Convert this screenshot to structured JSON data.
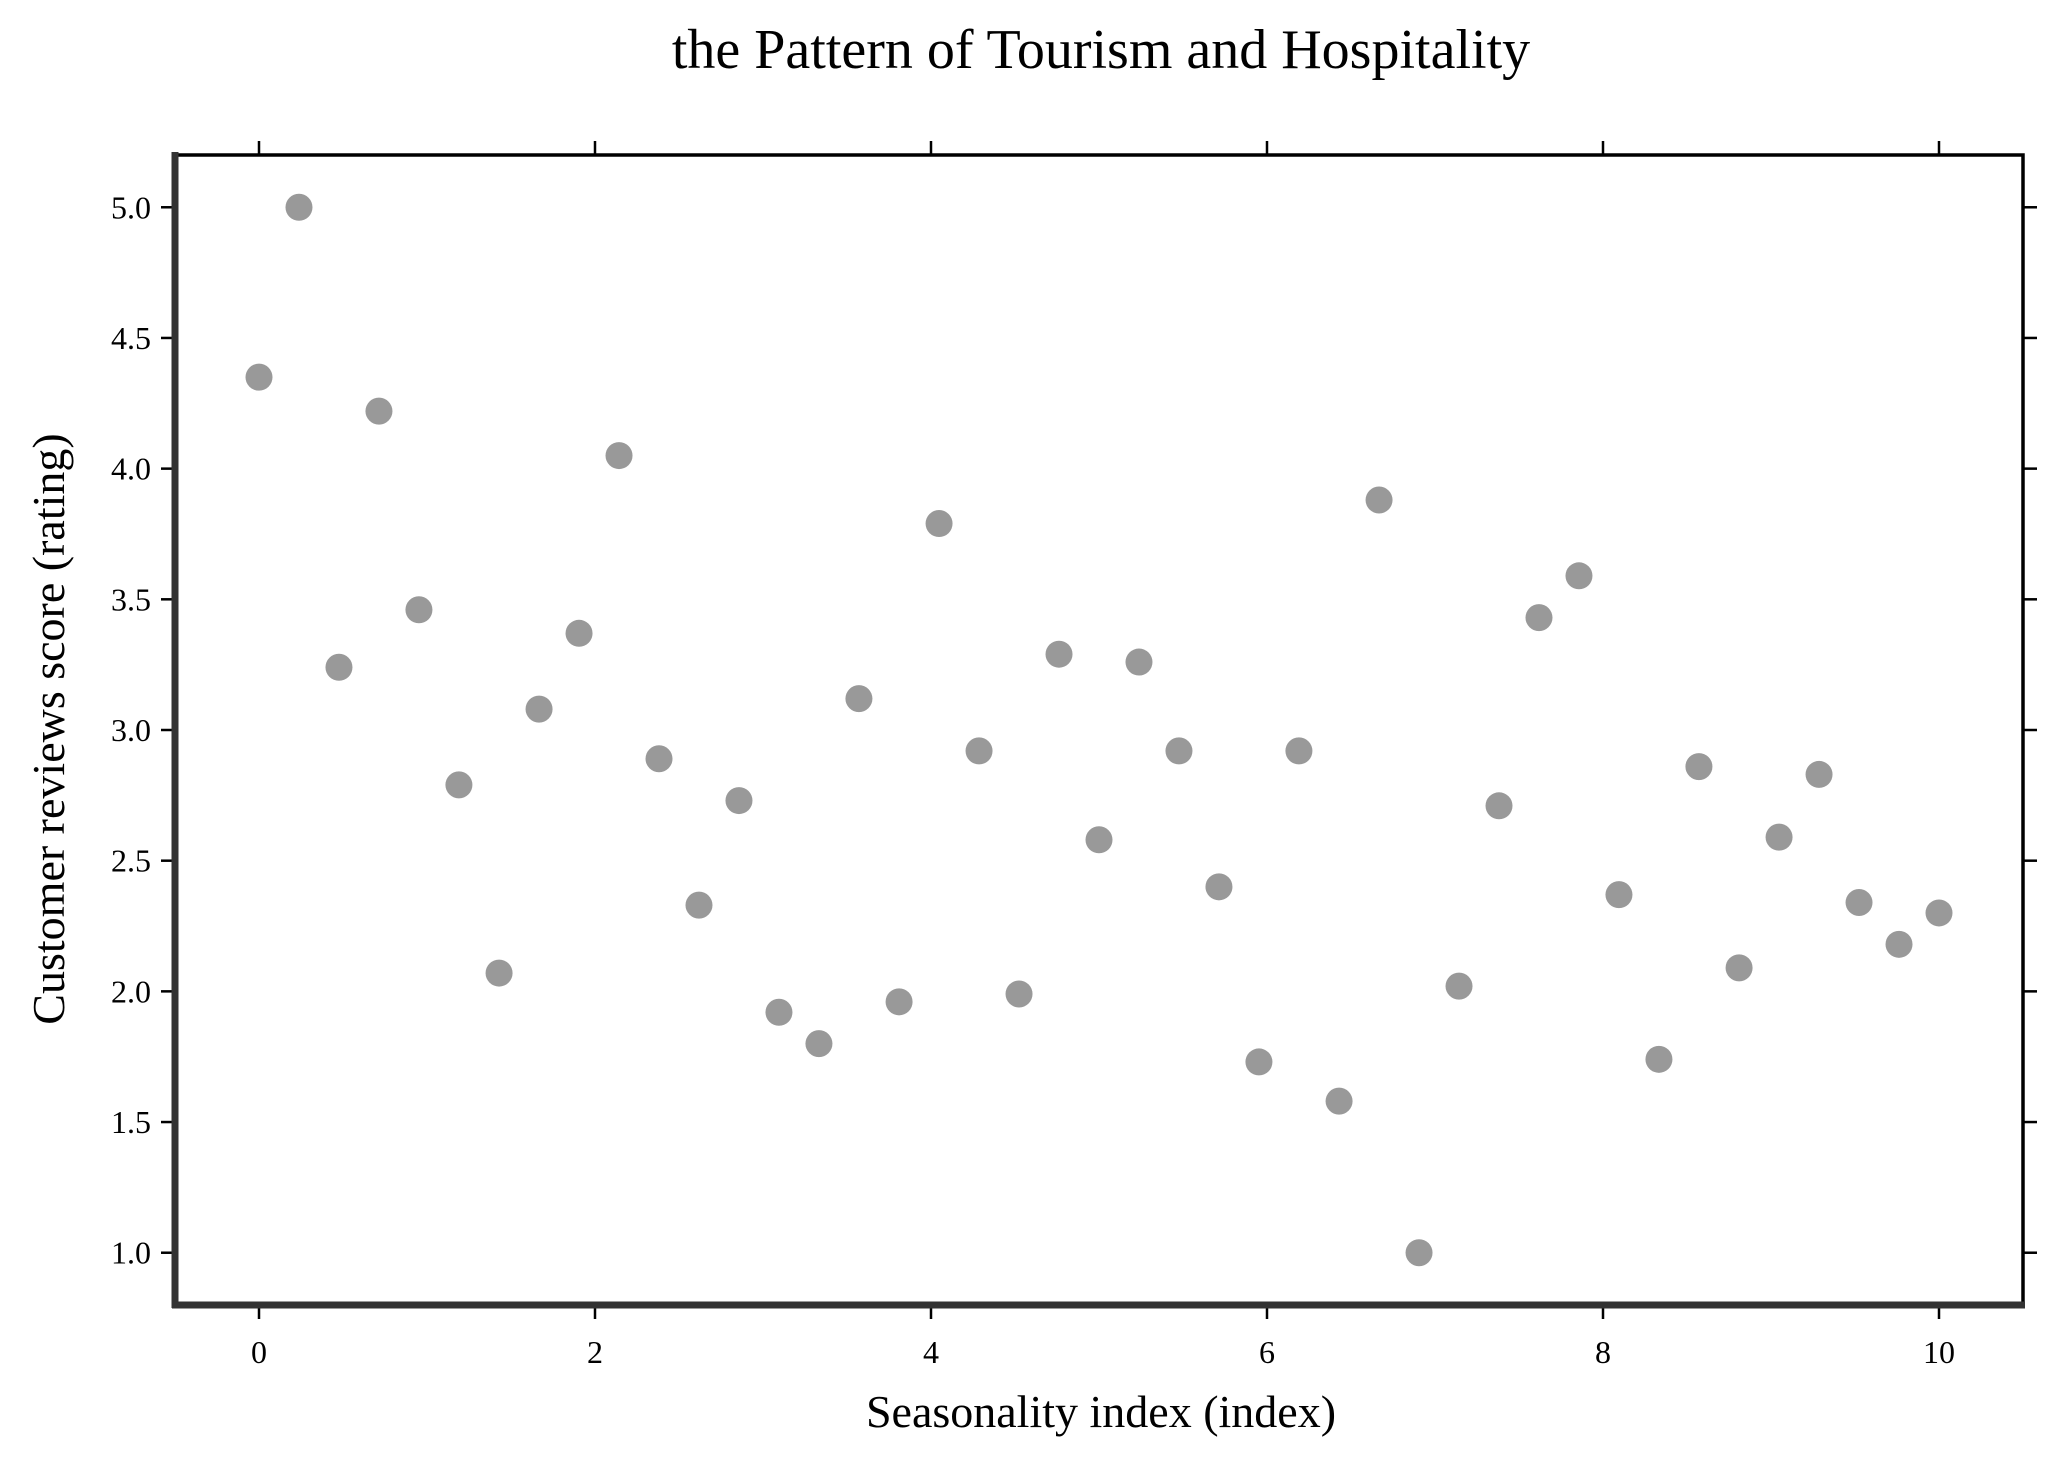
{
  "chart_data": {
    "type": "scatter",
    "title": "the Pattern of Tourism and Hospitality",
    "xlabel": "Seasonality index (index)",
    "ylabel": "Customer reviews score (rating)",
    "xlim": [
      -0.5,
      10.5
    ],
    "ylim": [
      0.8,
      5.2
    ],
    "xticks": [
      0,
      2,
      4,
      6,
      8,
      10
    ],
    "xtick_labels": [
      "0",
      "2",
      "4",
      "6",
      "8",
      "10"
    ],
    "yticks": [
      1.0,
      1.5,
      2.0,
      2.5,
      3.0,
      3.5,
      4.0,
      4.5,
      5.0
    ],
    "ytick_labels": [
      "1.0",
      "1.5",
      "2.0",
      "2.5",
      "3.0",
      "3.5",
      "4.0",
      "4.5",
      "5.0"
    ],
    "grid": false,
    "marker_color": "#999999",
    "x": [
      0.0,
      0.238,
      0.476,
      0.714,
      0.952,
      1.19,
      1.429,
      1.667,
      1.905,
      2.143,
      2.381,
      2.619,
      2.857,
      3.095,
      3.333,
      3.571,
      3.81,
      4.048,
      4.286,
      4.524,
      4.762,
      5.0,
      5.238,
      5.476,
      5.714,
      5.952,
      6.19,
      6.429,
      6.667,
      6.905,
      7.143,
      7.381,
      7.619,
      7.857,
      8.095,
      8.333,
      8.571,
      8.81,
      9.048,
      9.286,
      9.524,
      9.762,
      10.0
    ],
    "y": [
      4.35,
      5.0,
      3.24,
      4.22,
      3.46,
      2.79,
      2.07,
      3.08,
      3.37,
      4.05,
      2.89,
      2.33,
      2.73,
      1.92,
      1.8,
      3.12,
      1.96,
      3.79,
      2.92,
      1.99,
      3.29,
      2.58,
      3.26,
      2.92,
      2.4,
      1.73,
      2.92,
      1.58,
      3.88,
      1.0,
      2.02,
      2.71,
      3.43,
      3.59,
      2.37,
      1.74,
      2.86,
      2.09,
      2.59,
      2.83,
      2.34,
      2.18,
      2.3
    ]
  }
}
